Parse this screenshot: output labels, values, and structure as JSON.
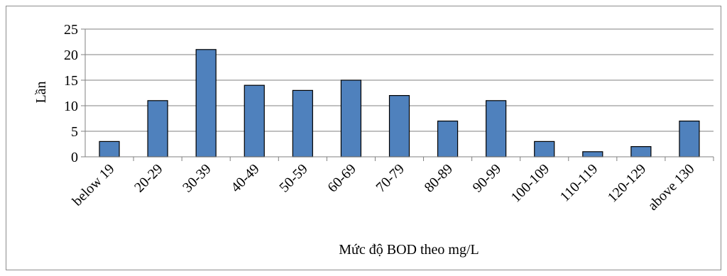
{
  "chart_data": {
    "type": "bar",
    "categories": [
      "below 19",
      "20-29",
      "30-39",
      "40-49",
      "50-59",
      "60-69",
      "70-79",
      "80-89",
      "90-99",
      "100-109",
      "110-119",
      "120-129",
      "above 130"
    ],
    "values": [
      3,
      11,
      21,
      14,
      13,
      15,
      12,
      7,
      11,
      3,
      1,
      2,
      7
    ],
    "title": "",
    "xlabel": "Mức độ BOD theo  mg/L",
    "ylabel": "Lần",
    "ylim": [
      0,
      25
    ],
    "yticks": [
      0,
      5,
      10,
      15,
      20,
      25
    ],
    "grid": true,
    "bar_color": "#4f81bd",
    "bar_edge_color": "#000000",
    "grid_color": "#808080"
  }
}
